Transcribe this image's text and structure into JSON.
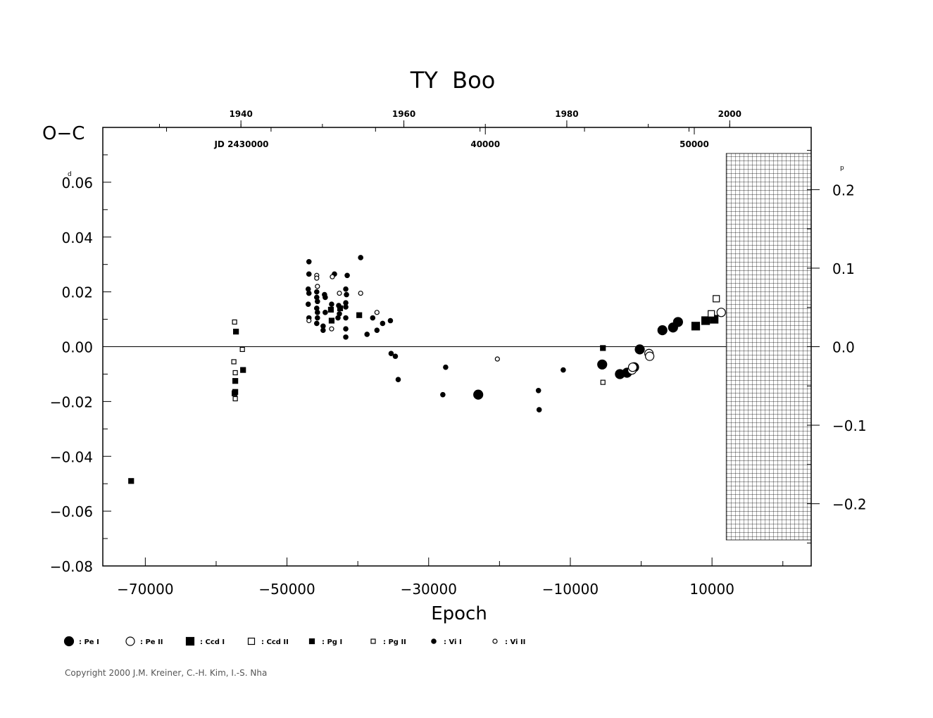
{
  "chart_data": {
    "type": "scatter",
    "title": "TY  Boo",
    "ylabel": "O−C",
    "ylabel_unit": "d",
    "right_axis_unit": "p",
    "xlabel": "Epoch",
    "jd_label": "JD 2430000",
    "xlim": [
      -76000,
      24000
    ],
    "ylim": [
      -0.08,
      0.08
    ],
    "x_ticks": [
      -70000,
      -50000,
      -30000,
      -10000,
      10000
    ],
    "y_ticks": [
      0.06,
      0.04,
      0.02,
      0.0,
      -0.02,
      -0.04,
      -0.06,
      -0.08
    ],
    "y_tick_labels": [
      "0.06",
      "0.04",
      "0.02",
      "0.00",
      "−0.02",
      "−0.04",
      "−0.06",
      "−0.08"
    ],
    "right_ticks": [
      0.2,
      0.1,
      0.0,
      -0.1,
      -0.2
    ],
    "right_tick_labels": [
      "0.2",
      "0.1",
      "0.0",
      "−0.1",
      "−0.2"
    ],
    "right_scale": 0.2865,
    "top_year_ticks": [
      {
        "label": "1940",
        "epoch": -56500
      },
      {
        "label": "1960",
        "epoch": -33500
      },
      {
        "label": "1980",
        "epoch": -10500
      },
      {
        "label": "2000",
        "epoch": 12500
      }
    ],
    "top_jd_ticks": [
      {
        "label": "40000",
        "epoch": -22000
      },
      {
        "label": "50000",
        "epoch": 7500
      }
    ],
    "future_region_start": 12000,
    "legend": [
      {
        "label": ": Pe I",
        "marker": "circle-filled-large"
      },
      {
        "label": ": Pe II",
        "marker": "circle-open-large"
      },
      {
        "label": ": Ccd I",
        "marker": "square-filled-large"
      },
      {
        "label": ": Ccd II",
        "marker": "square-open-large"
      },
      {
        "label": ": Pg I",
        "marker": "square-filled-small"
      },
      {
        "label": ": Pg II",
        "marker": "square-open-small"
      },
      {
        "label": ": Vi I",
        "marker": "circle-filled-small"
      },
      {
        "label": ": Vi II",
        "marker": "circle-open-small"
      }
    ],
    "series": [
      {
        "name": "Pe I",
        "points": [
          [
            -23000,
            -0.0175
          ],
          [
            -5500,
            -0.0065
          ],
          [
            -3000,
            -0.01
          ],
          [
            -2000,
            -0.0095
          ],
          [
            -1000,
            -0.0075
          ],
          [
            -200,
            -0.001
          ],
          [
            3000,
            0.006
          ],
          [
            4500,
            0.007
          ],
          [
            5200,
            0.009
          ]
        ]
      },
      {
        "name": "Pe II",
        "points": [
          [
            -1300,
            -0.0085
          ],
          [
            -1200,
            -0.0075
          ],
          [
            1100,
            -0.0025
          ],
          [
            1200,
            -0.0035
          ],
          [
            11300,
            0.0125
          ]
        ]
      },
      {
        "name": "Ccd I",
        "points": [
          [
            7700,
            0.0075
          ],
          [
            9100,
            0.0095
          ],
          [
            10300,
            0.01
          ]
        ]
      },
      {
        "name": "Ccd II",
        "points": [
          [
            9900,
            0.012
          ],
          [
            10600,
            0.0175
          ]
        ]
      },
      {
        "name": "Pg I",
        "points": [
          [
            -72000,
            -0.049
          ],
          [
            -57200,
            0.0055
          ],
          [
            -57300,
            -0.0125
          ],
          [
            -57300,
            -0.0165
          ],
          [
            -57400,
            -0.017
          ],
          [
            -56200,
            -0.0085
          ],
          [
            -43800,
            0.0135
          ],
          [
            -43700,
            0.0095
          ],
          [
            -42500,
            0.014
          ],
          [
            -39800,
            0.0115
          ],
          [
            -5400,
            -0.0005
          ]
        ]
      },
      {
        "name": "Pg II",
        "points": [
          [
            -57400,
            0.009
          ],
          [
            -57500,
            -0.0055
          ],
          [
            -57300,
            -0.0095
          ],
          [
            -57300,
            -0.019
          ],
          [
            -56300,
            -0.001
          ],
          [
            -5400,
            -0.013
          ]
        ]
      },
      {
        "name": "Vi I",
        "points": [
          [
            -46900,
            0.031
          ],
          [
            -46900,
            0.0265
          ],
          [
            -46900,
            0.0195
          ],
          [
            -47000,
            0.021
          ],
          [
            -47000,
            0.0155
          ],
          [
            -46900,
            0.0105
          ],
          [
            -45800,
            0.02
          ],
          [
            -45800,
            0.018
          ],
          [
            -45700,
            0.0165
          ],
          [
            -45800,
            0.014
          ],
          [
            -45700,
            0.0125
          ],
          [
            -45700,
            0.0105
          ],
          [
            -45800,
            0.0085
          ],
          [
            -44900,
            0.0075
          ],
          [
            -44900,
            0.006
          ],
          [
            -44700,
            0.019
          ],
          [
            -44600,
            0.018
          ],
          [
            -44600,
            0.0125
          ],
          [
            -43700,
            0.0155
          ],
          [
            -43300,
            0.0265
          ],
          [
            -42700,
            0.015
          ],
          [
            -42600,
            0.012
          ],
          [
            -42800,
            0.0105
          ],
          [
            -41700,
            0.021
          ],
          [
            -41600,
            0.019
          ],
          [
            -41700,
            0.016
          ],
          [
            -41700,
            0.0145
          ],
          [
            -41700,
            0.0105
          ],
          [
            -41700,
            0.0065
          ],
          [
            -41700,
            0.0035
          ],
          [
            -41500,
            0.026
          ],
          [
            -39600,
            0.0325
          ],
          [
            -38700,
            0.0045
          ],
          [
            -37900,
            0.0105
          ],
          [
            -37300,
            0.006
          ],
          [
            -36500,
            0.0085
          ],
          [
            -35400,
            0.0095
          ],
          [
            -35300,
            -0.0025
          ],
          [
            -34700,
            -0.0035
          ],
          [
            -34300,
            -0.012
          ],
          [
            -28000,
            -0.0175
          ],
          [
            -27600,
            -0.0075
          ],
          [
            -14500,
            -0.016
          ],
          [
            -14400,
            -0.023
          ],
          [
            -11000,
            -0.0085
          ]
        ]
      },
      {
        "name": "Vi II",
        "points": [
          [
            -46900,
            0.0095
          ],
          [
            -45800,
            0.026
          ],
          [
            -45800,
            0.025
          ],
          [
            -45700,
            0.022
          ],
          [
            -43600,
            0.0255
          ],
          [
            -43700,
            0.0065
          ],
          [
            -42600,
            0.0195
          ],
          [
            -39600,
            0.0195
          ],
          [
            -37300,
            0.0125
          ],
          [
            -20300,
            -0.0045
          ]
        ]
      }
    ]
  },
  "copyright": "Copyright 2000 J.M. Kreiner, C.-H. Kim, I.-S. Nha"
}
